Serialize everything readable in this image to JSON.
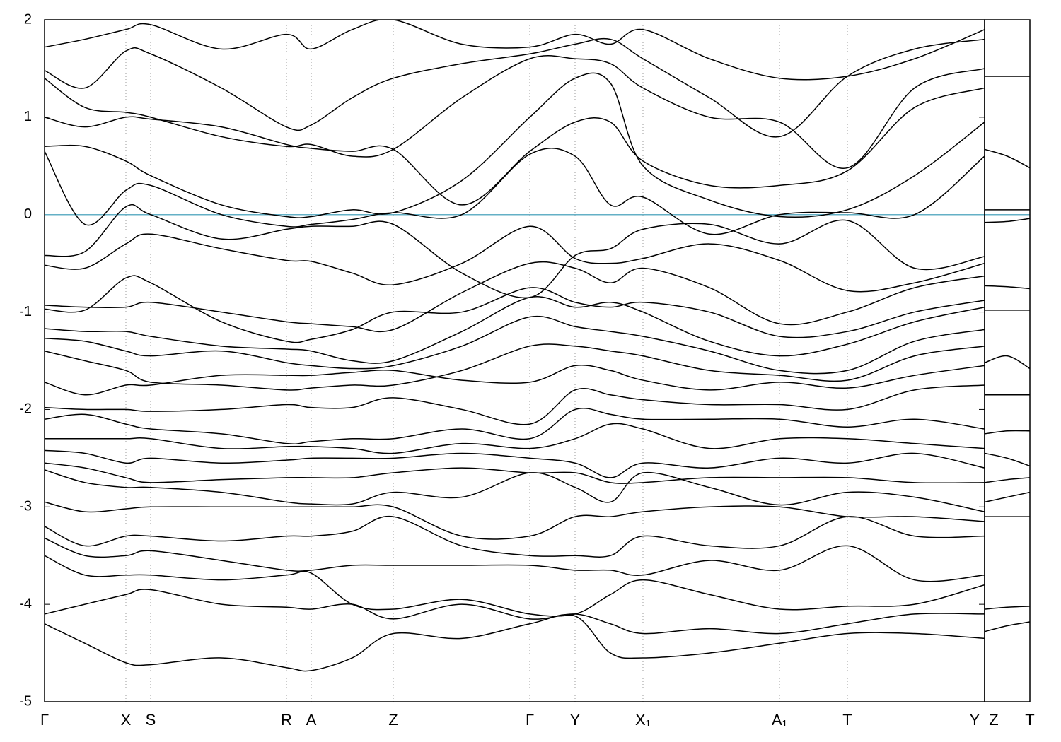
{
  "chart_data": [
    {
      "type": "line",
      "ylim": [
        -5,
        2
      ],
      "yticks": [
        -5,
        -4,
        -3,
        -2,
        -1,
        0,
        1,
        2
      ],
      "xlim": [
        0,
        1.329
      ],
      "xticks": [
        {
          "value": 0,
          "label": "Γ"
        },
        {
          "value": 0.115,
          "label": "X"
        },
        {
          "value": 0.15,
          "label": "S"
        },
        {
          "value": 0.342,
          "label": "R"
        },
        {
          "value": 0.377,
          "label": "A"
        },
        {
          "value": 0.493,
          "label": "Z"
        },
        {
          "value": 0.686,
          "label": "Γ"
        },
        {
          "value": 0.75,
          "label": "Y"
        },
        {
          "value": 0.846,
          "label": "X₁"
        },
        {
          "value": 1.039,
          "label": "A₁"
        },
        {
          "value": 1.135,
          "label": "T"
        },
        {
          "value": 1.329,
          "label": "Y"
        }
      ],
      "xgrid": true,
      "hline": {
        "value": 0,
        "color": "#64b0c6"
      },
      "x": [
        0,
        0.057,
        0.115,
        0.15,
        0.25,
        0.342,
        0.377,
        0.435,
        0.493,
        0.59,
        0.686,
        0.75,
        0.8,
        0.846,
        0.94,
        1.039,
        1.135,
        1.23,
        1.329
      ],
      "series": [
        {
          "color": "#000000",
          "values": [
            1.72,
            1.8,
            1.9,
            1.95,
            1.7,
            1.85,
            1.7,
            1.9,
            2.0,
            1.75,
            1.72,
            1.85,
            1.75,
            1.9,
            1.6,
            1.4,
            1.42,
            1.6,
            1.9
          ]
        },
        {
          "color": "#000000",
          "values": [
            1.48,
            1.3,
            1.68,
            1.65,
            1.3,
            0.9,
            0.92,
            1.2,
            1.4,
            1.55,
            1.65,
            1.75,
            1.8,
            1.6,
            1.2,
            0.8,
            1.42,
            1.7,
            1.8
          ]
        },
        {
          "color": "#000000",
          "values": [
            1.4,
            1.1,
            1.05,
            1.0,
            0.8,
            0.7,
            0.72,
            0.6,
            0.67,
            1.2,
            1.6,
            1.6,
            1.55,
            1.3,
            1.0,
            0.95,
            0.48,
            1.3,
            1.5
          ]
        },
        {
          "color": "#000000",
          "values": [
            1.0,
            0.9,
            1.0,
            0.98,
            0.9,
            0.72,
            0.68,
            0.65,
            0.67,
            0.1,
            0.65,
            0.95,
            0.95,
            0.55,
            0.3,
            0.3,
            0.45,
            1.1,
            1.3
          ]
        },
        {
          "color": "#000000",
          "values": [
            0.7,
            0.7,
            0.55,
            0.4,
            0.1,
            -0.02,
            -0.02,
            0.05,
            0.02,
            0.35,
            1.0,
            1.4,
            1.35,
            0.5,
            0.15,
            -0.02,
            0.05,
            0.4,
            0.95
          ]
        },
        {
          "color": "#000000",
          "values": [
            0.65,
            -0.1,
            0.25,
            0.3,
            0.0,
            -0.12,
            -0.1,
            -0.05,
            0.02,
            0.0,
            0.62,
            0.6,
            0.1,
            0.18,
            -0.2,
            0.0,
            0.02,
            0.0,
            0.6
          ]
        },
        {
          "color": "#000000",
          "values": [
            -0.42,
            -0.38,
            0.08,
            0.0,
            -0.25,
            -0.15,
            -0.12,
            -0.12,
            -0.1,
            -0.6,
            -0.85,
            -0.42,
            -0.35,
            -0.15,
            -0.1,
            -0.3,
            -0.06,
            -0.55,
            -0.43
          ]
        },
        {
          "color": "#000000",
          "values": [
            -0.52,
            -0.55,
            -0.3,
            -0.2,
            -0.35,
            -0.47,
            -0.48,
            -0.6,
            -0.72,
            -0.5,
            -0.12,
            -0.45,
            -0.5,
            -0.45,
            -0.3,
            -0.47,
            -0.78,
            -0.7,
            -0.5
          ]
        },
        {
          "color": "#000000",
          "values": [
            -0.93,
            -0.95,
            -0.95,
            -0.9,
            -1.0,
            -1.1,
            -1.12,
            -1.15,
            -1.18,
            -0.8,
            -0.5,
            -0.55,
            -0.7,
            -0.55,
            -0.75,
            -1.12,
            -1.0,
            -0.75,
            -0.63
          ]
        },
        {
          "color": "#000000",
          "values": [
            -0.97,
            -0.98,
            -0.65,
            -0.7,
            -1.1,
            -1.3,
            -1.28,
            -1.18,
            -1.0,
            -1.0,
            -0.75,
            -0.9,
            -0.95,
            -0.9,
            -1.0,
            -1.25,
            -1.2,
            -1.0,
            -0.88
          ]
        },
        {
          "color": "#000000",
          "values": [
            -1.17,
            -1.2,
            -1.2,
            -1.25,
            -1.35,
            -1.38,
            -1.4,
            -1.5,
            -1.5,
            -1.2,
            -0.85,
            -0.95,
            -0.9,
            -1.0,
            -1.3,
            -1.45,
            -1.33,
            -1.1,
            -0.95
          ]
        },
        {
          "color": "#000000",
          "values": [
            -1.27,
            -1.3,
            -1.4,
            -1.45,
            -1.4,
            -1.52,
            -1.55,
            -1.58,
            -1.55,
            -1.35,
            -1.05,
            -1.15,
            -1.2,
            -1.25,
            -1.4,
            -1.6,
            -1.6,
            -1.3,
            -1.18
          ]
        },
        {
          "color": "#000000",
          "values": [
            -1.4,
            -1.5,
            -1.6,
            -1.72,
            -1.75,
            -1.8,
            -1.78,
            -1.75,
            -1.75,
            -1.6,
            -1.35,
            -1.35,
            -1.4,
            -1.45,
            -1.6,
            -1.65,
            -1.7,
            -1.45,
            -1.35
          ]
        },
        {
          "color": "#000000",
          "values": [
            -1.72,
            -1.85,
            -1.75,
            -1.75,
            -1.65,
            -1.65,
            -1.65,
            -1.62,
            -1.6,
            -1.7,
            -1.72,
            -1.55,
            -1.6,
            -1.7,
            -1.8,
            -1.72,
            -1.78,
            -1.65,
            -1.55
          ]
        },
        {
          "color": "#000000",
          "values": [
            -1.98,
            -2.0,
            -2.0,
            -2.02,
            -2.0,
            -1.95,
            -1.98,
            -1.98,
            -1.88,
            -2.0,
            -2.15,
            -1.8,
            -1.85,
            -1.9,
            -1.95,
            -1.95,
            -2.0,
            -1.8,
            -1.75
          ]
        },
        {
          "color": "#000000",
          "values": [
            -2.1,
            -2.05,
            -2.15,
            -2.2,
            -2.25,
            -2.35,
            -2.33,
            -2.3,
            -2.3,
            -2.2,
            -2.3,
            -2.0,
            -2.05,
            -2.1,
            -2.1,
            -2.1,
            -2.18,
            -2.1,
            -2.2
          ]
        },
        {
          "color": "#000000",
          "values": [
            -2.3,
            -2.3,
            -2.3,
            -2.3,
            -2.4,
            -2.38,
            -2.38,
            -2.4,
            -2.45,
            -2.35,
            -2.4,
            -2.3,
            -2.15,
            -2.2,
            -2.4,
            -2.3,
            -2.3,
            -2.35,
            -2.4
          ]
        },
        {
          "color": "#000000",
          "values": [
            -2.42,
            -2.45,
            -2.55,
            -2.5,
            -2.55,
            -2.52,
            -2.5,
            -2.5,
            -2.5,
            -2.45,
            -2.5,
            -2.55,
            -2.7,
            -2.55,
            -2.6,
            -2.5,
            -2.55,
            -2.45,
            -2.6
          ]
        },
        {
          "color": "#000000",
          "values": [
            -2.55,
            -2.6,
            -2.7,
            -2.75,
            -2.72,
            -2.7,
            -2.7,
            -2.7,
            -2.65,
            -2.6,
            -2.65,
            -2.65,
            -2.75,
            -2.75,
            -2.7,
            -2.7,
            -2.7,
            -2.75,
            -2.75
          ]
        },
        {
          "color": "#000000",
          "values": [
            -2.62,
            -2.75,
            -2.8,
            -2.8,
            -2.85,
            -2.95,
            -2.97,
            -2.97,
            -2.85,
            -2.9,
            -2.65,
            -2.8,
            -2.95,
            -2.65,
            -2.8,
            -2.98,
            -2.85,
            -2.9,
            -3.05
          ]
        },
        {
          "color": "#000000",
          "values": [
            -2.95,
            -3.05,
            -3.02,
            -3.0,
            -3.0,
            -3.0,
            -3.0,
            -3.0,
            -3.0,
            -3.3,
            -3.3,
            -3.1,
            -3.1,
            -3.05,
            -3.0,
            -3.0,
            -3.1,
            -3.1,
            -3.15
          ]
        },
        {
          "color": "#000000",
          "values": [
            -3.2,
            -3.4,
            -3.3,
            -3.3,
            -3.35,
            -3.3,
            -3.3,
            -3.25,
            -3.1,
            -3.4,
            -3.5,
            -3.5,
            -3.5,
            -3.3,
            -3.4,
            -3.4,
            -3.1,
            -3.3,
            -3.3
          ]
        },
        {
          "color": "#000000",
          "values": [
            -3.32,
            -3.5,
            -3.5,
            -3.45,
            -3.55,
            -3.65,
            -3.65,
            -3.6,
            -3.6,
            -3.6,
            -3.6,
            -3.65,
            -3.65,
            -3.7,
            -3.55,
            -3.65,
            -3.4,
            -3.75,
            -3.7
          ]
        },
        {
          "color": "#000000",
          "values": [
            -3.5,
            -3.7,
            -3.7,
            -3.7,
            -3.75,
            -3.7,
            -3.68,
            -4.0,
            -4.05,
            -3.95,
            -4.1,
            -4.1,
            -3.9,
            -3.75,
            -3.9,
            -4.05,
            -4.02,
            -4.0,
            -3.8
          ]
        },
        {
          "color": "#000000",
          "values": [
            -4.1,
            -4.0,
            -3.9,
            -3.85,
            -4.0,
            -4.03,
            -4.05,
            -4.0,
            -4.15,
            -4.0,
            -4.15,
            -4.1,
            -4.2,
            -4.3,
            -4.25,
            -4.3,
            -4.2,
            -4.1,
            -4.1
          ]
        },
        {
          "color": "#000000",
          "values": [
            -4.2,
            -4.4,
            -4.6,
            -4.62,
            -4.55,
            -4.65,
            -4.68,
            -4.55,
            -4.3,
            -4.35,
            -4.2,
            -4.12,
            -4.5,
            -4.55,
            -4.5,
            -4.4,
            -4.3,
            -4.3,
            -4.35
          ]
        }
      ]
    },
    {
      "type": "line",
      "ylim": [
        -5,
        2
      ],
      "xlim": [
        1.329,
        1.393
      ],
      "xticks": [
        {
          "value": 1.329,
          "label": "Z"
        },
        {
          "value": 1.393,
          "label": "T"
        }
      ],
      "hline": {
        "value": 0,
        "color": "#64b0c6"
      },
      "x": [
        1.329,
        1.361,
        1.393
      ],
      "series": [
        {
          "color": "#000000",
          "values": [
            1.42,
            1.42,
            1.42
          ]
        },
        {
          "color": "#000000",
          "values": [
            0.67,
            0.6,
            0.48
          ]
        },
        {
          "color": "#000000",
          "values": [
            0.05,
            0.05,
            0.05
          ]
        },
        {
          "color": "#000000",
          "values": [
            -0.08,
            -0.07,
            -0.04
          ]
        },
        {
          "color": "#000000",
          "values": [
            -0.73,
            -0.74,
            -0.76
          ]
        },
        {
          "color": "#000000",
          "values": [
            -0.98,
            -0.98,
            -0.98
          ]
        },
        {
          "color": "#000000",
          "values": [
            -1.52,
            -1.45,
            -1.58
          ]
        },
        {
          "color": "#000000",
          "values": [
            -1.85,
            -1.85,
            -1.85
          ]
        },
        {
          "color": "#000000",
          "values": [
            -2.25,
            -2.22,
            -2.22
          ]
        },
        {
          "color": "#000000",
          "values": [
            -2.45,
            -2.5,
            -2.58
          ]
        },
        {
          "color": "#000000",
          "values": [
            -2.75,
            -2.72,
            -2.7
          ]
        },
        {
          "color": "#000000",
          "values": [
            -2.95,
            -2.9,
            -2.85
          ]
        },
        {
          "color": "#000000",
          "values": [
            -3.1,
            -3.1,
            -3.1
          ]
        },
        {
          "color": "#000000",
          "values": [
            -4.05,
            -4.03,
            -4.02
          ]
        },
        {
          "color": "#000000",
          "values": [
            -4.28,
            -4.22,
            -4.18
          ]
        }
      ]
    }
  ]
}
